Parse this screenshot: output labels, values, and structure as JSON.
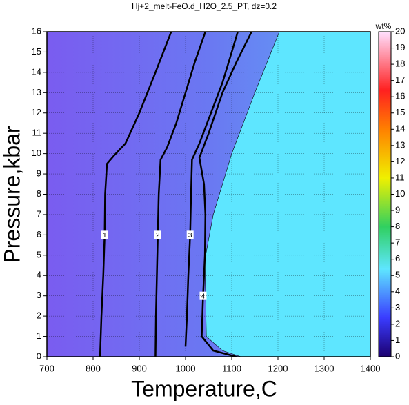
{
  "chart_data": {
    "type": "contour",
    "title": "Hj+2_melt-FeO.d_H2O_2.5_PT, dz=0.2",
    "xlabel": "Temperature,C",
    "ylabel": "Pressure,kbar",
    "xlim": [
      700,
      1400
    ],
    "ylim": [
      0,
      16
    ],
    "xticks": [
      700,
      800,
      900,
      1000,
      1100,
      1200,
      1300,
      1400
    ],
    "yticks": [
      0,
      1,
      2,
      3,
      4,
      5,
      6,
      7,
      8,
      9,
      10,
      11,
      12,
      13,
      14,
      15,
      16
    ],
    "colorbar_label": "wt%",
    "colorbar_lim": [
      0,
      20
    ],
    "colorbar_ticks": [
      0,
      1,
      2,
      3,
      4,
      5,
      6,
      7,
      8,
      9,
      10,
      11,
      12,
      13,
      14,
      15,
      16,
      17,
      18,
      19,
      20
    ],
    "field_boundary": {
      "x": [
        1120,
        1080,
        1045,
        1042,
        1060,
        1100,
        1150,
        1203
      ],
      "y": [
        0,
        0.3,
        1,
        4.8,
        7,
        10,
        13,
        16
      ]
    },
    "contours": [
      {
        "level": 1,
        "x": [
          815,
          818,
          822,
          825,
          826,
          830,
          845,
          870,
          900,
          935,
          969
        ],
        "y": [
          0,
          2,
          4,
          6,
          8,
          9.5,
          9.9,
          10.5,
          12,
          14,
          16
        ]
      },
      {
        "level": 2,
        "x": [
          935,
          936,
          938,
          940,
          942,
          946,
          960,
          980,
          1000,
          1020,
          1043
        ],
        "y": [
          0,
          2,
          4,
          6,
          8,
          9.7,
          10.3,
          11.5,
          13,
          14.5,
          16
        ]
      },
      {
        "level": 3,
        "x": [
          1000,
          1003,
          1006,
          1010,
          1012,
          1014,
          1030,
          1055,
          1080,
          1100,
          1113
        ],
        "y": [
          0.5,
          2,
          4,
          6,
          8,
          9.7,
          10.5,
          12,
          13.5,
          15,
          16
        ]
      },
      {
        "level": 4,
        "x": [
          1110,
          1060,
          1035,
          1038,
          1042,
          1043,
          1040,
          1030,
          1050,
          1080,
          1110,
          1143
        ],
        "y": [
          0,
          0.3,
          1,
          3,
          5,
          7,
          8.5,
          9.8,
          11,
          13,
          14.5,
          16
        ]
      }
    ]
  }
}
